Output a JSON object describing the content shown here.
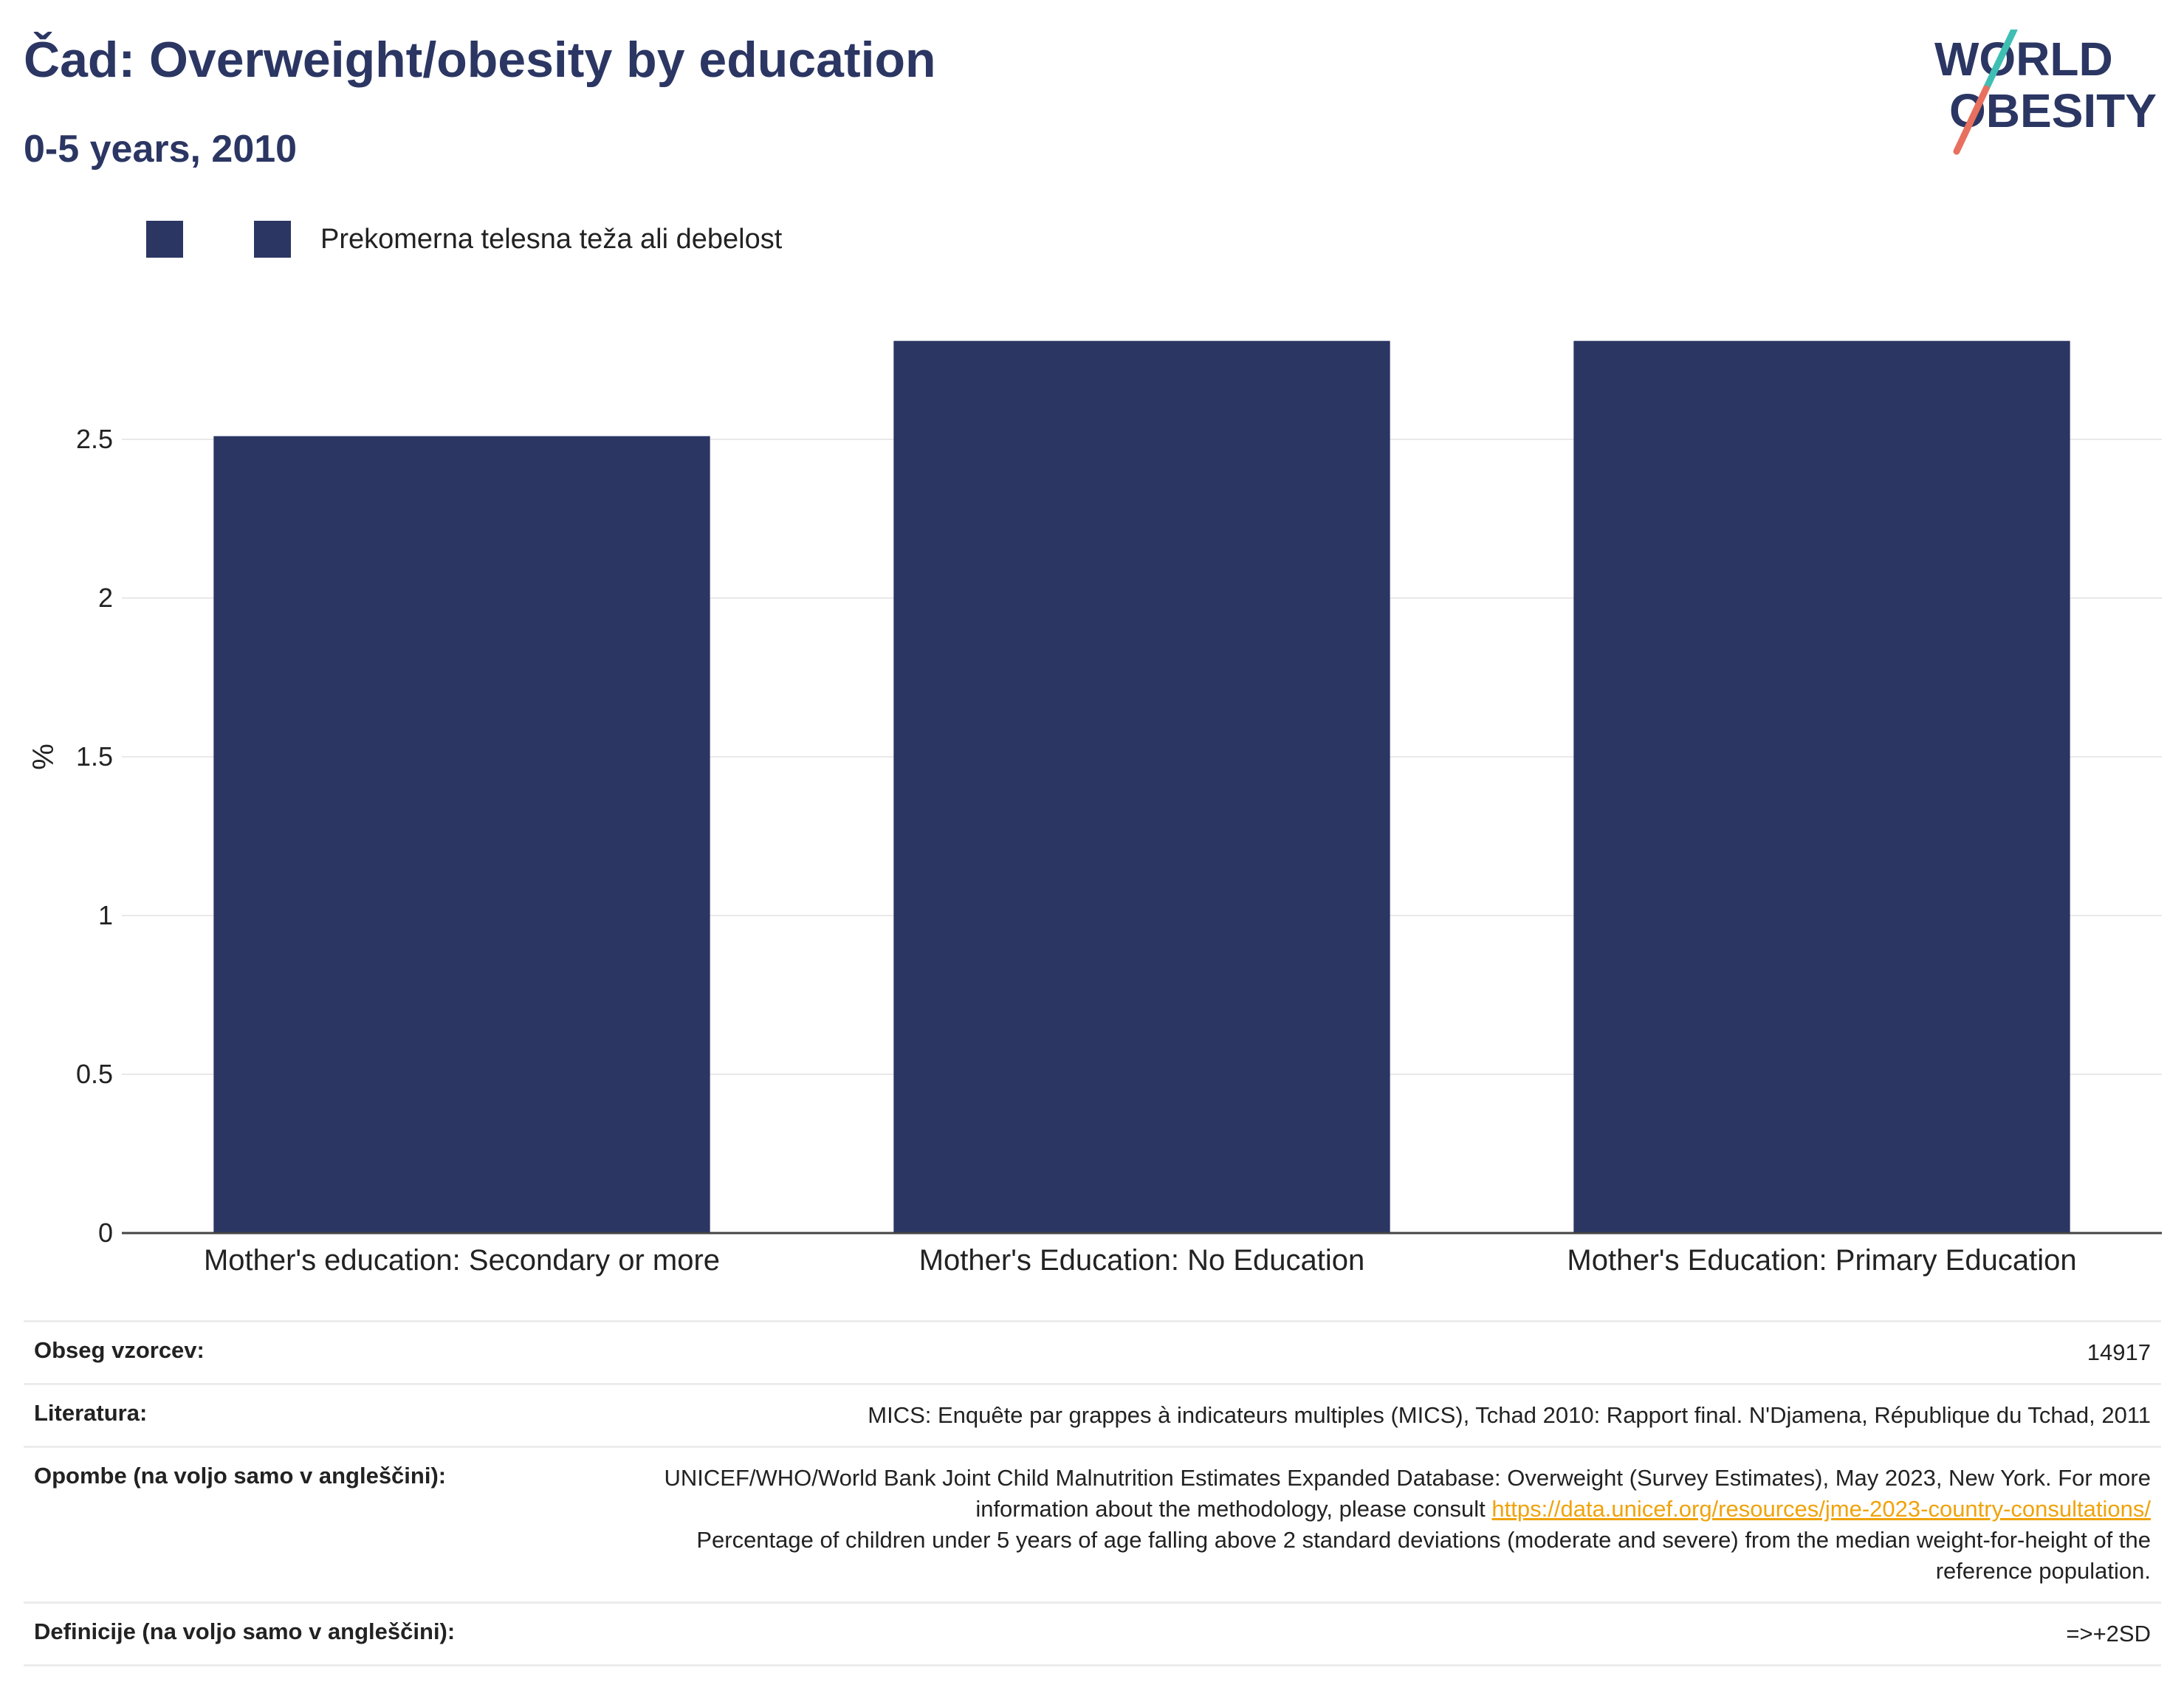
{
  "header": {
    "title": "Čad: Overweight/obesity by education",
    "subtitle": "0-5 years, 2010"
  },
  "logo": {
    "line1": "WORLD",
    "line2": "OBESITY"
  },
  "legend": {
    "items": [
      {
        "label": "",
        "color": "#2b3663"
      },
      {
        "label": "Prekomerna telesna teža ali debelost",
        "color": "#2b3663"
      }
    ]
  },
  "chart_data": {
    "type": "bar",
    "categories": [
      "Mother's education: Secondary or more",
      "Mother's Education: No Education",
      "Mother's Education: Primary Education"
    ],
    "series": [
      {
        "name": "Prekomerna telesna teža ali debelost",
        "values": [
          2.51,
          2.81,
          2.81
        ],
        "color": "#2b3663"
      }
    ],
    "title": "Čad: Overweight/obesity by education",
    "subtitle": "0-5 years, 2010",
    "xlabel": "",
    "ylabel": "%",
    "ylim": [
      0,
      3.0
    ],
    "yticks": [
      0,
      0.5,
      1,
      1.5,
      2,
      2.5
    ],
    "ytick_labels": [
      "0",
      "0.5",
      "1",
      "1.5",
      "2",
      "2.5"
    ],
    "grid": true,
    "legend_position": "top-left"
  },
  "info": {
    "sample_size_label": "Obseg vzorcev:",
    "sample_size_value": "14917",
    "literature_label": "Literatura:",
    "literature_value": "MICS: Enquête par grappes à indicateurs multiples (MICS), Tchad 2010: Rapport final. N'Djamena, République du Tchad, 2011",
    "notes_label": "Opombe (na voljo samo v angleščini):",
    "notes_text": "UNICEF/WHO/World Bank Joint Child Malnutrition Estimates Expanded Database: Overweight (Survey Estimates), May 2023, New York. For more information about the methodology, please consult",
    "notes_link": "https://data.unicef.org/resources/jme-2023-country-consultations/",
    "notes_text2": "Percentage of children under 5 years of age falling above 2 standard deviations (moderate and severe) from the median weight-for-height of the reference population.",
    "definitions_label": "Definicije (na voljo samo v angleščini):",
    "definitions_value": "=>+2SD"
  }
}
